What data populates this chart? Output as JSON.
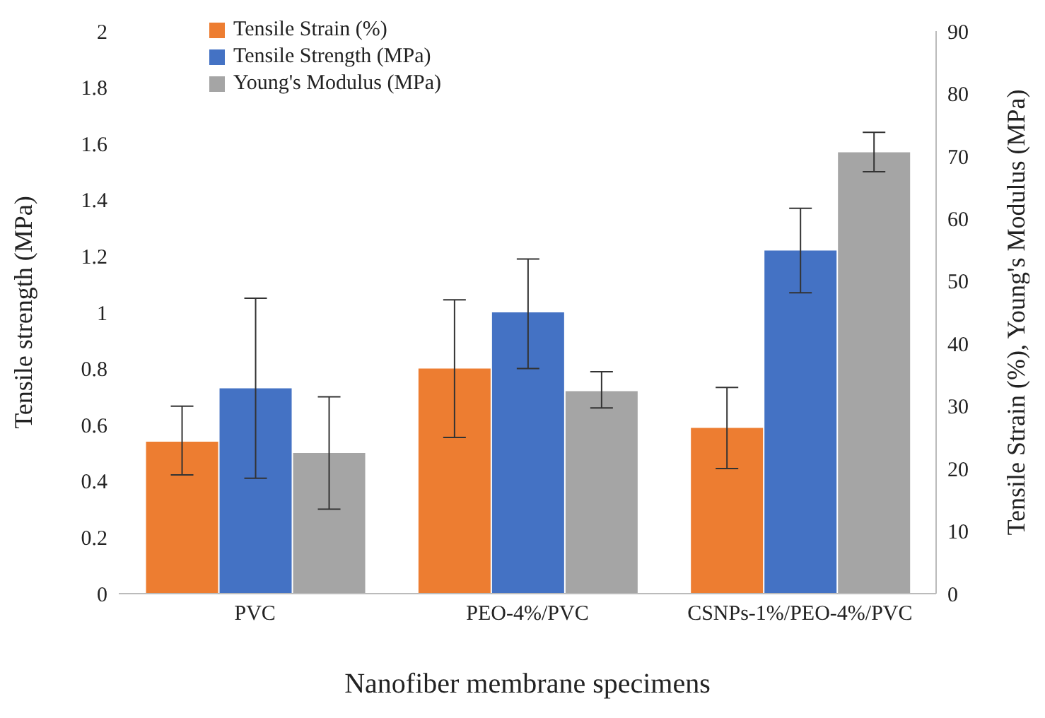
{
  "chart_data": {
    "type": "bar",
    "xlabel": "Nanofiber membrane specimens",
    "ylabel": "Tensile strength (MPa)",
    "y2label": "Tensile Strain (%), Young's Modulus (MPa)",
    "categories": [
      "PVC",
      "PEO-4%/PVC",
      "CSNPs-1%/PEO-4%/PVC"
    ],
    "series": [
      {
        "name": "Tensile Strain (%)",
        "color": "#ed7d31",
        "axis": "y2",
        "values": [
          24.3,
          36,
          26.5
        ],
        "errors": [
          [
            19,
            30
          ],
          [
            25,
            47
          ],
          [
            20,
            33
          ]
        ]
      },
      {
        "name": "Tensile Strength (MPa)",
        "color": "#4472c4",
        "values": [
          0.73,
          1.0,
          1.22
        ],
        "errors": [
          [
            0.41,
            1.05
          ],
          [
            0.8,
            1.19
          ],
          [
            1.07,
            1.37
          ]
        ]
      },
      {
        "name": "Young's Modulus (MPa)",
        "color": "#a5a5a5",
        "axis": "y2",
        "values": [
          22.5,
          32.4,
          70.6
        ],
        "errors": [
          [
            13.5,
            31.5
          ],
          [
            29.7,
            35.5
          ],
          [
            67.5,
            73.8
          ]
        ]
      }
    ],
    "ylim": [
      0,
      2
    ],
    "yticks": [
      0,
      0.2,
      0.4,
      0.6,
      0.8,
      1,
      1.2,
      1.4,
      1.6,
      1.8,
      2
    ],
    "y2lim": [
      0,
      90
    ],
    "y2ticks": [
      0,
      10,
      20,
      30,
      40,
      50,
      60,
      70,
      80,
      90
    ],
    "grid": false,
    "legend": "top left"
  }
}
